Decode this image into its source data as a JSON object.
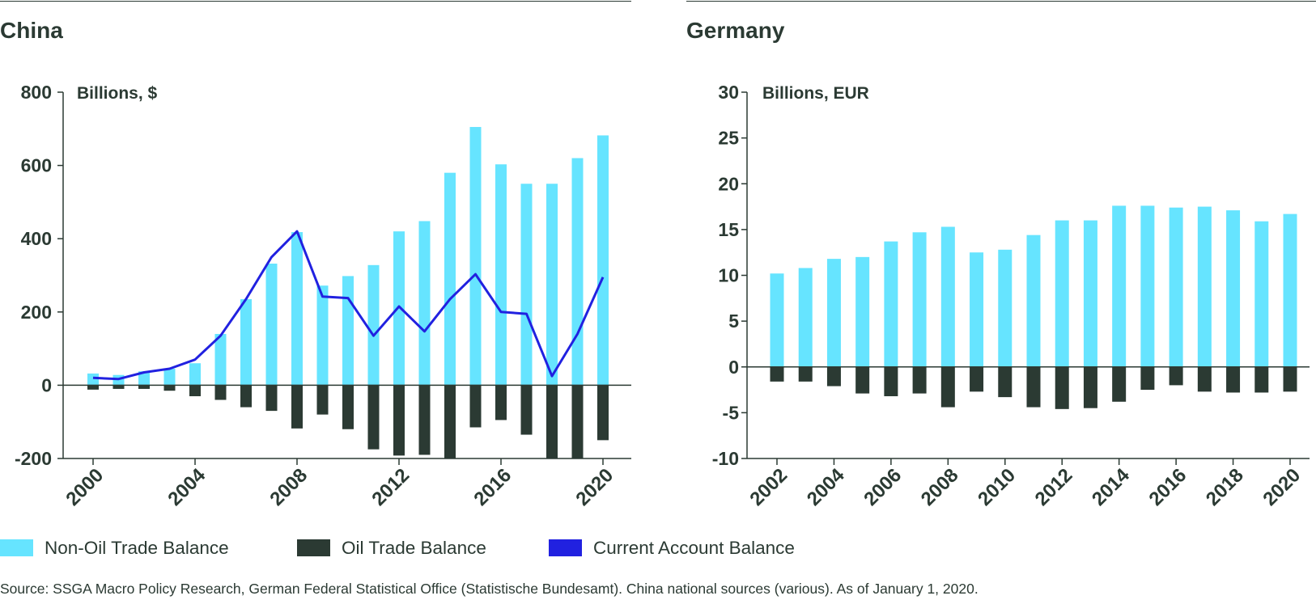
{
  "colors": {
    "non_oil": "#66e4ff",
    "oil": "#2b3a33",
    "current_account": "#2121e0",
    "text": "#2b3a33"
  },
  "chart_data": [
    {
      "type": "bar",
      "title": "China",
      "ylabel": "Billions, $",
      "xlabel": "",
      "ylim": [
        -200,
        800
      ],
      "yticks": [
        -200,
        0,
        200,
        400,
        600,
        800
      ],
      "ytick_labels": [
        "-200",
        "0",
        "200",
        "400",
        "600",
        "800"
      ],
      "x": [
        2000,
        2001,
        2002,
        2003,
        2004,
        2005,
        2006,
        2007,
        2008,
        2009,
        2010,
        2011,
        2012,
        2013,
        2014,
        2015,
        2016,
        2017,
        2018,
        2019,
        2020
      ],
      "xtick_labels": [
        "2000",
        "2004",
        "2008",
        "2012",
        "2016",
        "2020"
      ],
      "grid": false,
      "stacking": "overlaid around zero",
      "series": [
        {
          "name": "Non-Oil Trade Balance",
          "type": "bar",
          "values": [
            32,
            28,
            38,
            45,
            60,
            140,
            235,
            332,
            418,
            272,
            298,
            328,
            420,
            448,
            580,
            705,
            603,
            550,
            550,
            620,
            682
          ]
        },
        {
          "name": "Oil Trade Balance",
          "type": "bar",
          "values": [
            -12,
            -10,
            -10,
            -15,
            -30,
            -40,
            -60,
            -70,
            -118,
            -80,
            -120,
            -175,
            -192,
            -190,
            -200,
            -115,
            -95,
            -135,
            -200,
            -200,
            -150
          ]
        },
        {
          "name": "Current Account Balance",
          "type": "line",
          "values": [
            20,
            17,
            35,
            45,
            70,
            135,
            235,
            350,
            420,
            242,
            238,
            135,
            215,
            147,
            235,
            303,
            200,
            195,
            25,
            140,
            295
          ]
        }
      ]
    },
    {
      "type": "bar",
      "title": "Germany",
      "ylabel": "Billions, EUR",
      "xlabel": "",
      "ylim": [
        -10,
        30
      ],
      "yticks": [
        -10,
        -5,
        0,
        5,
        10,
        15,
        20,
        25,
        30
      ],
      "ytick_labels": [
        "-10",
        "-5",
        "0",
        "5",
        "10",
        "15",
        "20",
        "25",
        "30"
      ],
      "x": [
        2002,
        2003,
        2004,
        2005,
        2006,
        2007,
        2008,
        2009,
        2010,
        2011,
        2012,
        2013,
        2014,
        2015,
        2016,
        2017,
        2018,
        2019,
        2020
      ],
      "xtick_labels": [
        "2002",
        "2004",
        "2006",
        "2008",
        "2010",
        "2012",
        "2014",
        "2016",
        "2018",
        "2020"
      ],
      "grid": false,
      "stacking": "overlaid around zero",
      "series": [
        {
          "name": "Non-Oil Trade Balance",
          "type": "bar",
          "values": [
            10.2,
            10.8,
            11.8,
            12.0,
            13.7,
            14.7,
            15.3,
            12.5,
            12.8,
            14.4,
            16.0,
            16.0,
            17.6,
            17.6,
            17.4,
            17.5,
            17.1,
            15.9,
            16.7
          ]
        },
        {
          "name": "Oil Trade Balance",
          "type": "bar",
          "values": [
            -1.6,
            -1.6,
            -2.1,
            -2.9,
            -3.2,
            -2.9,
            -4.4,
            -2.7,
            -3.3,
            -4.4,
            -4.6,
            -4.5,
            -3.8,
            -2.5,
            -2.0,
            -2.7,
            -2.8,
            -2.8,
            -2.7
          ]
        }
      ]
    }
  ],
  "legend": {
    "non_oil": "Non-Oil Trade Balance",
    "oil": "Oil Trade Balance",
    "current_account": "Current Account Balance"
  },
  "source": "Source: SSGA Macro Policy Research, German Federal Statistical Office (Statistische Bundesamt). China national sources (various). As of January 1, 2020."
}
